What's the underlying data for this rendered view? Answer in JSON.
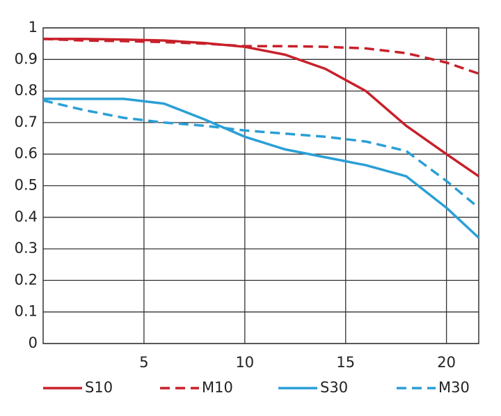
{
  "chart_data": {
    "type": "line",
    "x": [
      0,
      2,
      4,
      6,
      8,
      10,
      12,
      14,
      16,
      18,
      20,
      21.6
    ],
    "series": [
      {
        "name": "S10",
        "color": "#c8202a",
        "dashed": false,
        "values": [
          0.965,
          0.965,
          0.963,
          0.96,
          0.952,
          0.94,
          0.915,
          0.87,
          0.8,
          0.69,
          0.6,
          0.53
        ]
      },
      {
        "name": "M10",
        "color": "#c8202a",
        "dashed": true,
        "values": [
          0.965,
          0.96,
          0.958,
          0.955,
          0.95,
          0.942,
          0.942,
          0.94,
          0.935,
          0.92,
          0.89,
          0.855
        ]
      },
      {
        "name": "S30",
        "color": "#2a9fd6",
        "dashed": false,
        "values": [
          0.775,
          0.775,
          0.775,
          0.76,
          0.71,
          0.655,
          0.615,
          0.59,
          0.565,
          0.53,
          0.43,
          0.335
        ]
      },
      {
        "name": "M30",
        "color": "#2a9fd6",
        "dashed": true,
        "values": [
          0.77,
          0.74,
          0.715,
          0.7,
          0.69,
          0.675,
          0.665,
          0.655,
          0.64,
          0.61,
          0.515,
          0.43
        ]
      }
    ],
    "xlim": [
      0,
      21.6
    ],
    "xticks": [
      5,
      10,
      15,
      20
    ],
    "ylim": [
      0,
      1
    ],
    "yticks": [
      0,
      0.1,
      0.2,
      0.3,
      0.4,
      0.5,
      0.6,
      0.7,
      0.8,
      0.9,
      1
    ],
    "grid": true,
    "legend": "bottom"
  }
}
